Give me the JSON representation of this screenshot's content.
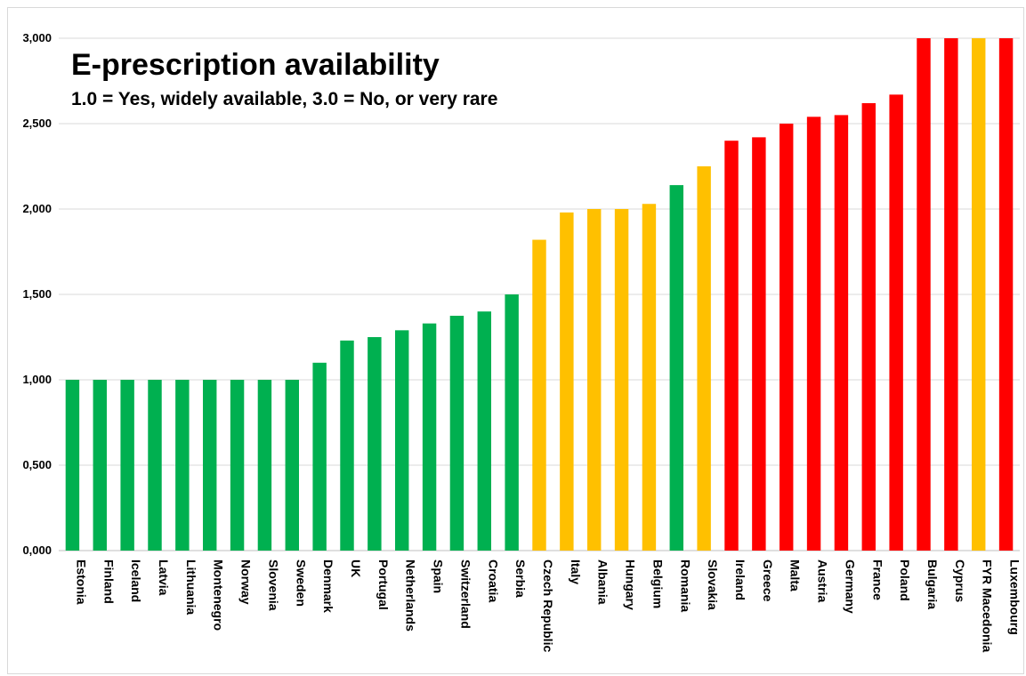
{
  "chart_data": {
    "type": "bar",
    "title": "E-prescription availability",
    "subtitle": "1.0 = Yes, widely available, 3.0 = No, or very rare",
    "xlabel": "",
    "ylabel": "",
    "ylim": [
      0,
      3
    ],
    "yticks": [
      {
        "value": 0,
        "label": "0,000"
      },
      {
        "value": 0.5,
        "label": "0,500"
      },
      {
        "value": 1,
        "label": "1,000"
      },
      {
        "value": 1.5,
        "label": "1,500"
      },
      {
        "value": 2,
        "label": "2,000"
      },
      {
        "value": 2.5,
        "label": "2,500"
      },
      {
        "value": 3,
        "label": "3,000"
      }
    ],
    "grid": true,
    "legend": "none",
    "colors": {
      "green": "#00b050",
      "amber": "#ffc000",
      "red": "#ff0000"
    },
    "categories": [
      "Estonia",
      "Finland",
      "Iceland",
      "Latvia",
      "Lithuania",
      "Montenegro",
      "Norway",
      "Slovenia",
      "Sweden",
      "Denmark",
      "UK",
      "Portugal",
      "Netherlands",
      "Spain",
      "Switzerland",
      "Croatia",
      "Serbia",
      "Czech Republic",
      "Italy",
      "Albania",
      "Hungary",
      "Belgium",
      "Romania",
      "Slovakia",
      "Ireland",
      "Greece",
      "Malta",
      "Austria",
      "Germany",
      "France",
      "Poland",
      "Bulgaria",
      "Cyprus",
      "FYR Macedonia",
      "Luxembourg"
    ],
    "values": [
      1.0,
      1.0,
      1.0,
      1.0,
      1.0,
      1.0,
      1.0,
      1.0,
      1.0,
      1.1,
      1.23,
      1.25,
      1.29,
      1.33,
      1.375,
      1.4,
      1.5,
      1.82,
      1.98,
      2.0,
      2.0,
      2.03,
      2.14,
      2.25,
      2.4,
      2.42,
      2.5,
      2.54,
      2.55,
      2.62,
      2.67,
      3.0,
      3.0,
      3.0,
      3.0
    ],
    "bar_colors": [
      "green",
      "green",
      "green",
      "green",
      "green",
      "green",
      "green",
      "green",
      "green",
      "green",
      "green",
      "green",
      "green",
      "green",
      "green",
      "green",
      "green",
      "amber",
      "amber",
      "amber",
      "amber",
      "amber",
      "green",
      "amber",
      "red",
      "red",
      "red",
      "red",
      "red",
      "red",
      "red",
      "red",
      "red",
      "amber",
      "red"
    ]
  }
}
